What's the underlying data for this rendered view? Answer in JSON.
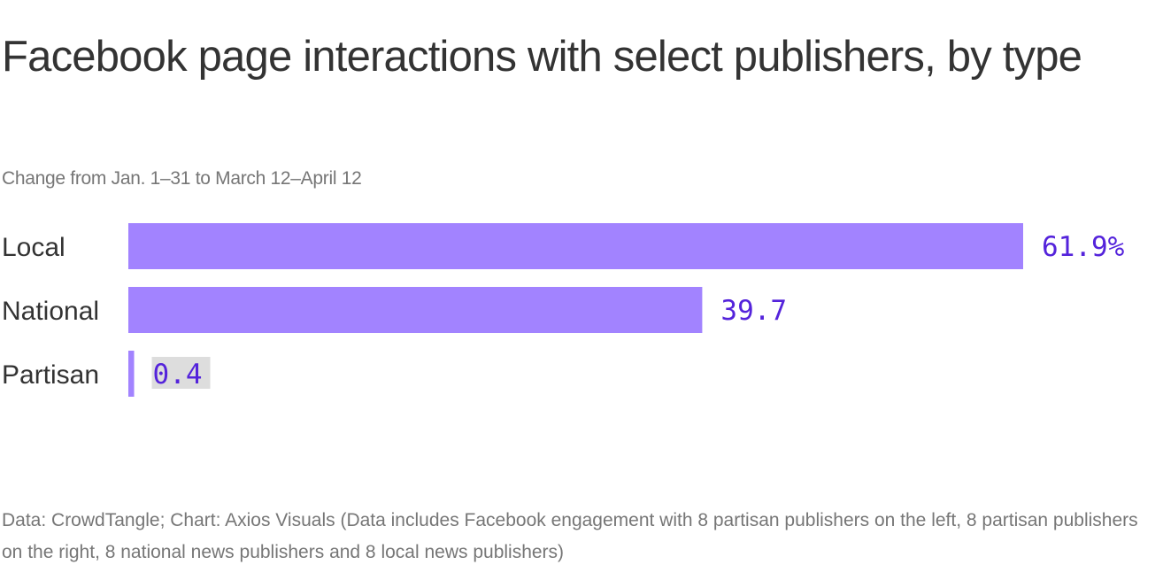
{
  "chart_data": {
    "type": "bar",
    "orientation": "horizontal",
    "title": "Facebook page interactions with select publishers, by type",
    "subtitle": "Change from Jan. 1–31 to March 12–April 12",
    "categories": [
      "Local",
      "National",
      "Partisan"
    ],
    "values": [
      61.9,
      39.7,
      0.4
    ],
    "value_labels": [
      "61.9%",
      "39.7",
      "0.4"
    ],
    "xlabel": "",
    "ylabel": "",
    "xlim": [
      0,
      61.9
    ],
    "grid": false,
    "legend": "none",
    "colors": {
      "bar": "#a283ff",
      "value_text": "#5423db",
      "highlight_bg": "#dddddd"
    },
    "source": "Data: CrowdTangle; Chart: Axios Visuals (Data includes Facebook engagement with 8 partisan publishers on the left, 8 partisan publishers on the right, 8 national news publishers and 8 local news publishers)"
  }
}
